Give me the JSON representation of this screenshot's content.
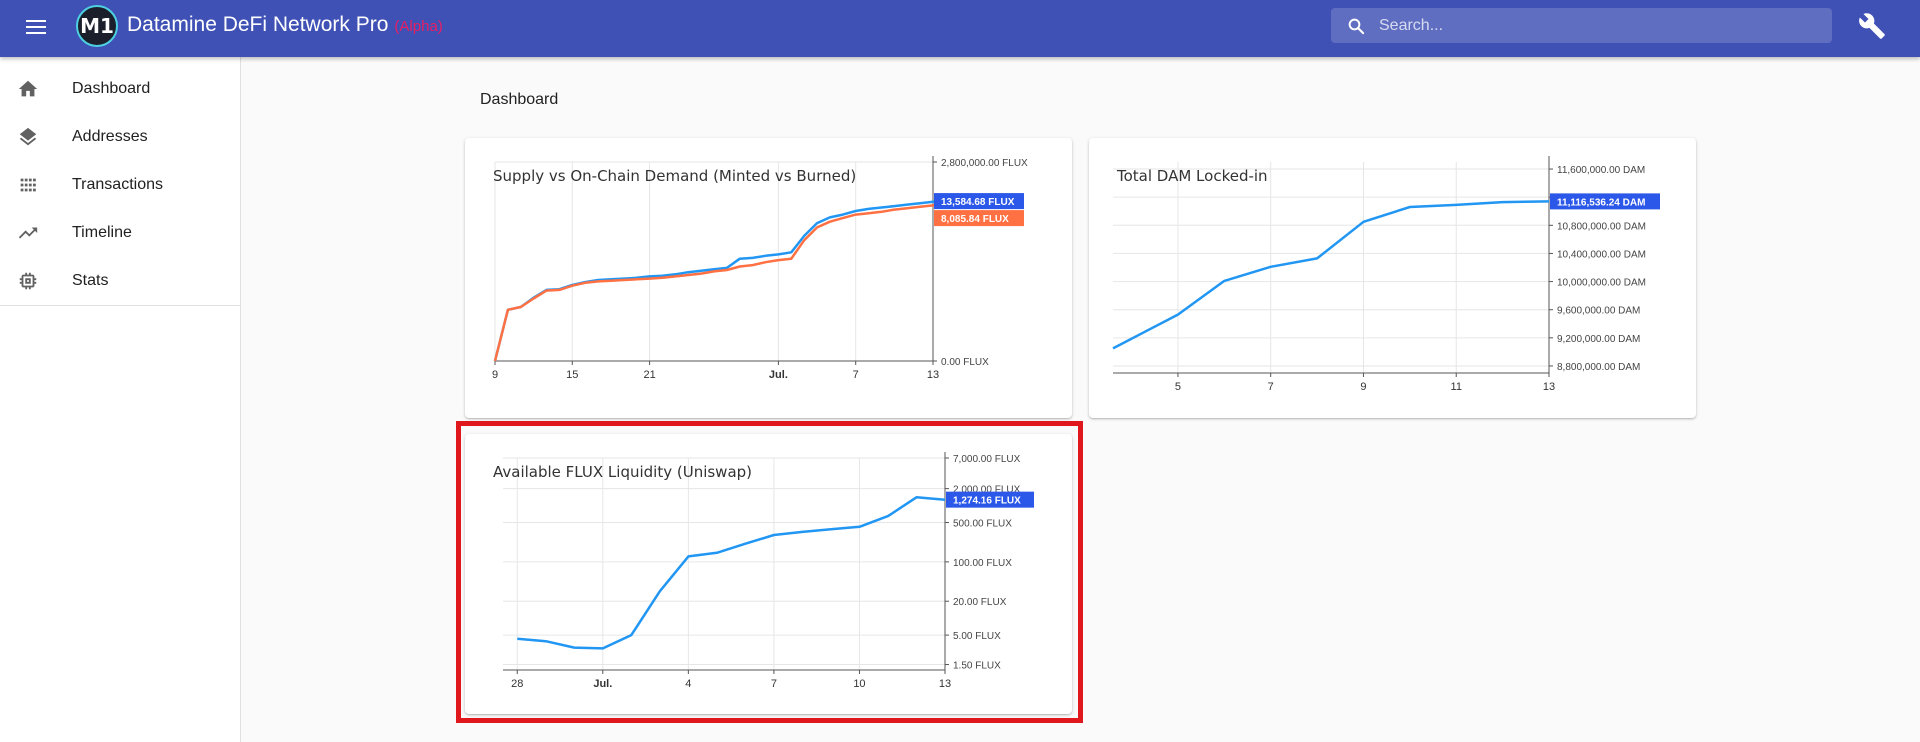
{
  "app": {
    "title": "Datamine DeFi Network Pro",
    "badge": "(Alpha)",
    "logo_text": "M1"
  },
  "search": {
    "placeholder": "Search..."
  },
  "sidebar": {
    "items": [
      {
        "label": "Dashboard",
        "icon": "home-icon"
      },
      {
        "label": "Addresses",
        "icon": "layers-icon"
      },
      {
        "label": "Transactions",
        "icon": "grid-icon"
      },
      {
        "label": "Timeline",
        "icon": "trending-up-icon"
      },
      {
        "label": "Stats",
        "icon": "chip-icon"
      }
    ]
  },
  "page": {
    "title": "Dashboard"
  },
  "chart_data": [
    {
      "type": "line",
      "title": "Supply vs On-Chain Demand (Minted vs Burned)",
      "x_ticks": [
        "9",
        "15",
        "21",
        "Jul.",
        "7",
        "13"
      ],
      "y_ticks": [
        "2,800,000.00 FLUX",
        "0.00 FLUX"
      ],
      "y_tick_values": [
        2800000,
        0
      ],
      "x": [
        0,
        1,
        2,
        3,
        4,
        5,
        6,
        7,
        8,
        9,
        10,
        11,
        12,
        13,
        14,
        15,
        16,
        17,
        18,
        19,
        20,
        21,
        22,
        23,
        24,
        25,
        26,
        27,
        28,
        29,
        30,
        31,
        32,
        33,
        34,
        35
      ],
      "x_tick_positions": [
        0,
        6,
        12,
        22,
        28,
        34
      ],
      "xlim": [
        0,
        34
      ],
      "ylim": [
        0,
        2800000
      ],
      "series": [
        {
          "color": "#2196f3",
          "values": [
            0,
            720000,
            760000,
            890000,
            1000000,
            1010000,
            1070000,
            1110000,
            1140000,
            1150000,
            1160000,
            1170000,
            1190000,
            1200000,
            1220000,
            1250000,
            1270000,
            1290000,
            1310000,
            1440000,
            1450000,
            1480000,
            1500000,
            1530000,
            1760000,
            1940000,
            2020000,
            2060000,
            2110000,
            2140000,
            2160000,
            2180000,
            2200000,
            2220000,
            2240000,
            2250000
          ]
        },
        {
          "color": "#ff7043",
          "values": [
            0,
            720000,
            760000,
            880000,
            990000,
            1000000,
            1060000,
            1100000,
            1120000,
            1130000,
            1140000,
            1150000,
            1160000,
            1170000,
            1190000,
            1210000,
            1230000,
            1260000,
            1280000,
            1330000,
            1350000,
            1390000,
            1420000,
            1440000,
            1700000,
            1880000,
            1960000,
            2010000,
            2060000,
            2080000,
            2100000,
            2130000,
            2150000,
            2170000,
            2190000,
            2200000
          ]
        }
      ],
      "price_tags": [
        {
          "label": "13,584.68 FLUX",
          "color": "#2b58e8",
          "series_index": 0
        },
        {
          "label": "8,085.84 FLUX",
          "color": "#ff7043",
          "series_index": 1
        }
      ]
    },
    {
      "type": "line",
      "title": "Total DAM Locked-in",
      "x_ticks": [
        "5",
        "7",
        "9",
        "11",
        "13"
      ],
      "x_tick_positions": [
        5,
        7,
        9,
        11,
        13
      ],
      "y_ticks": [
        "11,600,000.00 DAM",
        "11,200,000.00 DAM",
        "10,800,000.00 DAM",
        "10,400,000.00 DAM",
        "10,000,000.00 DAM",
        "9,600,000.00 DAM",
        "9,200,000.00 DAM",
        "8,800,000.00 DAM"
      ],
      "y_tick_values": [
        11600000,
        11200000,
        10800000,
        10400000,
        10000000,
        9600000,
        9200000,
        8800000
      ],
      "x": [
        3.6,
        5,
        6,
        7,
        8,
        9,
        10,
        11,
        12,
        13
      ],
      "xlim": [
        3.6,
        13
      ],
      "ylim": [
        8700000,
        11700000
      ],
      "series": [
        {
          "color": "#2196f3",
          "values": [
            9050000,
            9530000,
            10010000,
            10210000,
            10330000,
            10850000,
            11060000,
            11090000,
            11130000,
            11140000
          ]
        }
      ],
      "price_tags": [
        {
          "label": "11,116,536.24 DAM",
          "color": "#2b58e8",
          "series_index": 0
        }
      ]
    },
    {
      "type": "line",
      "title": "Available FLUX Liquidity (Uniswap)",
      "x_ticks": [
        "28",
        "Jul.",
        "4",
        "7",
        "10",
        "13"
      ],
      "x_tick_positions": [
        0,
        3,
        6,
        9,
        12,
        15
      ],
      "y_scale": "log",
      "y_ticks": [
        "7,000.00 FLUX",
        "2,000.00 FLUX",
        "500.00 FLUX",
        "100.00 FLUX",
        "20.00 FLUX",
        "5.00 FLUX",
        "1.50 FLUX"
      ],
      "y_tick_values": [
        7000,
        2000,
        500,
        100,
        20,
        5,
        1.5
      ],
      "x": [
        0,
        1,
        2,
        3,
        4,
        5,
        6,
        7,
        8,
        9,
        10,
        11,
        12,
        13,
        14,
        15
      ],
      "xlim": [
        -0.5,
        15
      ],
      "ylim": [
        1.2,
        7000
      ],
      "series": [
        {
          "color": "#2196f3",
          "values": [
            4.3,
            3.9,
            3.0,
            2.9,
            5.0,
            30,
            125,
            145,
            210,
            300,
            340,
            380,
            420,
            650,
            1400,
            1274
          ]
        }
      ],
      "price_tags": [
        {
          "label": "1,274.16 FLUX",
          "color": "#2b58e8",
          "series_index": 0
        }
      ]
    }
  ]
}
